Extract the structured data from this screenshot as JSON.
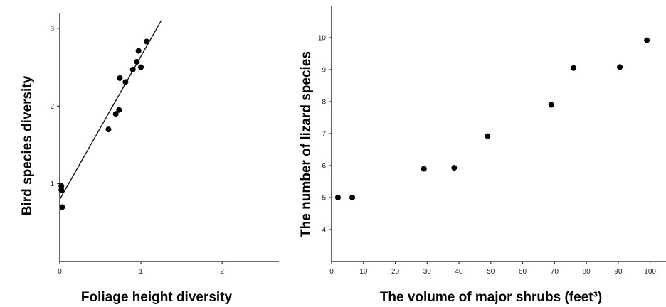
{
  "chart_data": [
    {
      "type": "scatter",
      "title": "",
      "xlabel": "Foliage height diversity",
      "ylabel": "Bird species diversity",
      "xlim": [
        0,
        2.7
      ],
      "ylim": [
        0,
        3.2
      ],
      "x_ticks": [
        0,
        1,
        2
      ],
      "y_ticks": [
        1,
        2,
        3
      ],
      "x_tick_labels": [
        "0",
        "1",
        "2"
      ],
      "y_tick_labels": [
        "1",
        "2",
        "3"
      ],
      "points": [
        {
          "x": 0.02,
          "y": 0.97
        },
        {
          "x": 0.02,
          "y": 0.92
        },
        {
          "x": 0.03,
          "y": 0.7
        },
        {
          "x": 0.6,
          "y": 1.7
        },
        {
          "x": 0.69,
          "y": 1.9
        },
        {
          "x": 0.73,
          "y": 1.95
        },
        {
          "x": 0.74,
          "y": 2.36
        },
        {
          "x": 0.81,
          "y": 2.31
        },
        {
          "x": 0.9,
          "y": 2.47
        },
        {
          "x": 0.95,
          "y": 2.57
        },
        {
          "x": 0.97,
          "y": 2.71
        },
        {
          "x": 1.0,
          "y": 2.5
        },
        {
          "x": 1.07,
          "y": 2.83
        }
      ],
      "trend_line": {
        "x": [
          0.0,
          1.25
        ],
        "y": [
          0.8,
          3.1
        ]
      },
      "grid": false
    },
    {
      "type": "scatter",
      "title": "",
      "xlabel": "The volume of major shrubs (feet³)",
      "ylabel": "The number of lizard  species",
      "xlim": [
        0,
        105
      ],
      "ylim": [
        3,
        11
      ],
      "x_ticks": [
        0,
        10,
        20,
        30,
        40,
        50,
        60,
        70,
        80,
        90,
        100
      ],
      "y_ticks": [
        4,
        5,
        6,
        7,
        8,
        9,
        10
      ],
      "x_tick_labels": [
        "0",
        "10",
        "20",
        "30",
        "40",
        "50",
        "60",
        "70",
        "80",
        "90",
        "100"
      ],
      "y_tick_labels": [
        "4",
        "5",
        "6",
        "7",
        "8",
        "9",
        "10"
      ],
      "points": [
        {
          "x": 2,
          "y": 5.0
        },
        {
          "x": 6.5,
          "y": 5.0
        },
        {
          "x": 29,
          "y": 5.9
        },
        {
          "x": 38.5,
          "y": 5.93
        },
        {
          "x": 49,
          "y": 6.92
        },
        {
          "x": 69,
          "y": 7.9
        },
        {
          "x": 76,
          "y": 9.05
        },
        {
          "x": 90.5,
          "y": 9.08
        },
        {
          "x": 99,
          "y": 9.92
        }
      ],
      "grid": false
    }
  ]
}
